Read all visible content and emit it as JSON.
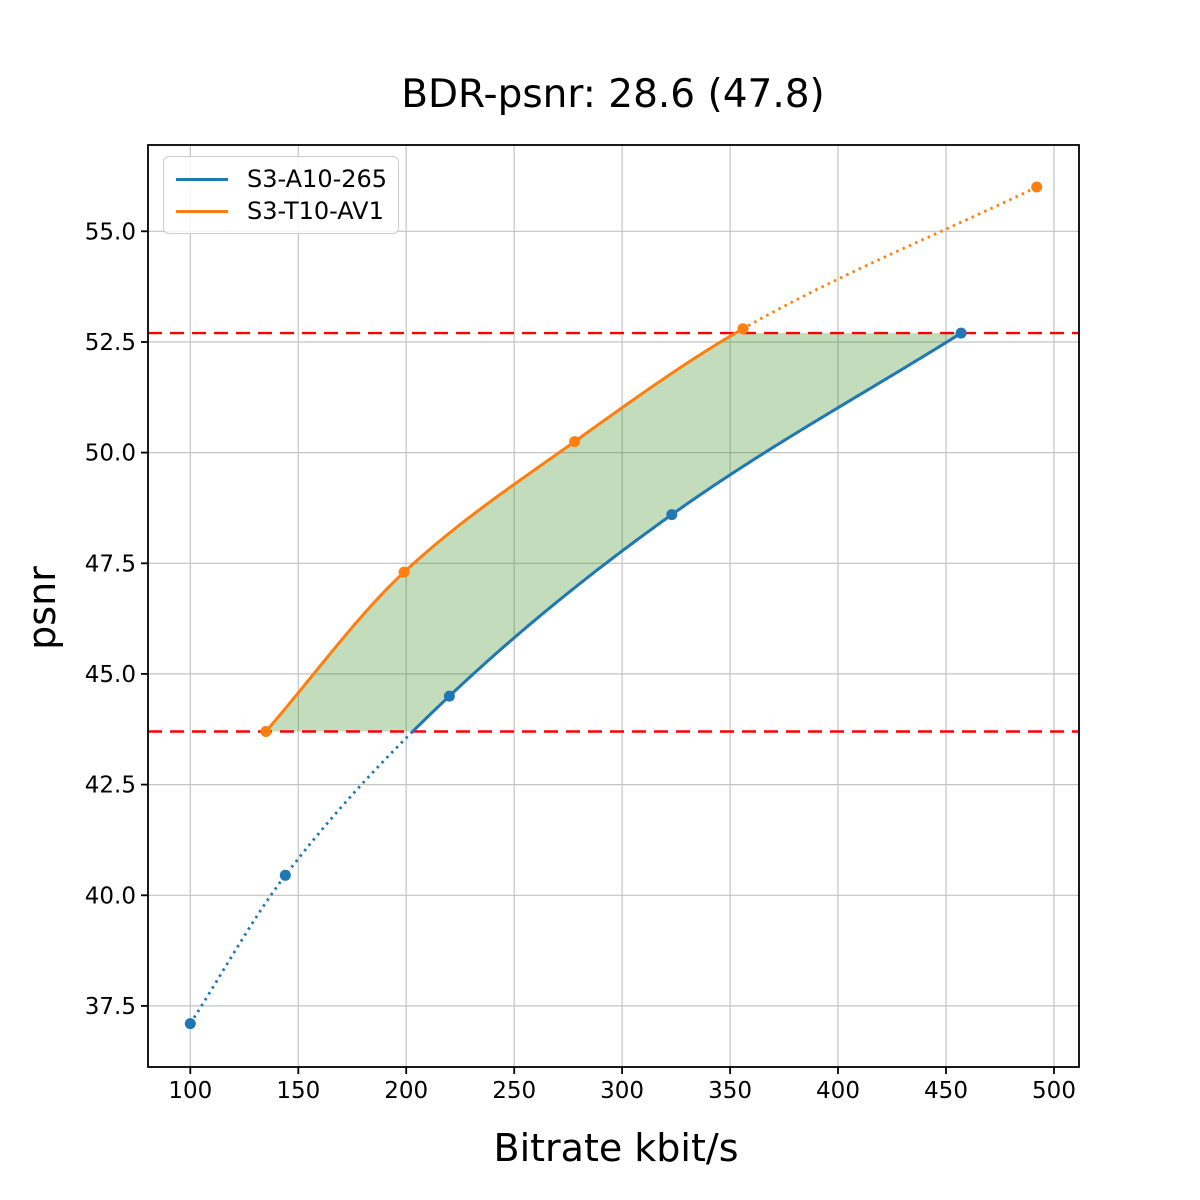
{
  "figure": {
    "title": "BDR-psnr: 28.6 (47.8)"
  },
  "chart_data": {
    "type": "line",
    "title": "BDR-psnr: 28.6 (47.8)",
    "xlabel": "Bitrate kbit/s",
    "ylabel": "psnr",
    "xlim": [
      80.4,
      511.6
    ],
    "ylim": [
      36.12,
      56.95
    ],
    "x_ticks": [
      100,
      150,
      200,
      250,
      300,
      350,
      400,
      450,
      500
    ],
    "y_ticks": [
      37.5,
      40.0,
      42.5,
      45.0,
      47.5,
      50.0,
      52.5,
      55.0
    ],
    "grid": true,
    "grid_color": "#c3c3c3",
    "legend_position": "upper-left",
    "series": [
      {
        "name": "S3-A10-265",
        "color": "#1f77b4",
        "marker": "circle",
        "x": [
          100,
          144,
          220,
          323,
          457
        ],
        "y": [
          37.1,
          40.45,
          44.5,
          48.6,
          52.7
        ]
      },
      {
        "name": "S3-T10-AV1",
        "color": "#ff7f0e",
        "marker": "circle",
        "x": [
          135,
          199,
          278,
          356,
          492
        ],
        "y": [
          43.7,
          47.3,
          50.25,
          52.8,
          56.0
        ]
      }
    ],
    "reference_lines": {
      "color": "#ff0000",
      "style": "dashed",
      "values": [
        43.7,
        52.7
      ]
    },
    "shaded_region": {
      "fill": "#348a20",
      "opacity": 0.3,
      "psnr_range": [
        43.7,
        52.7
      ]
    },
    "line_style_note": "solid inside psnr overlap range, dotted outside"
  }
}
